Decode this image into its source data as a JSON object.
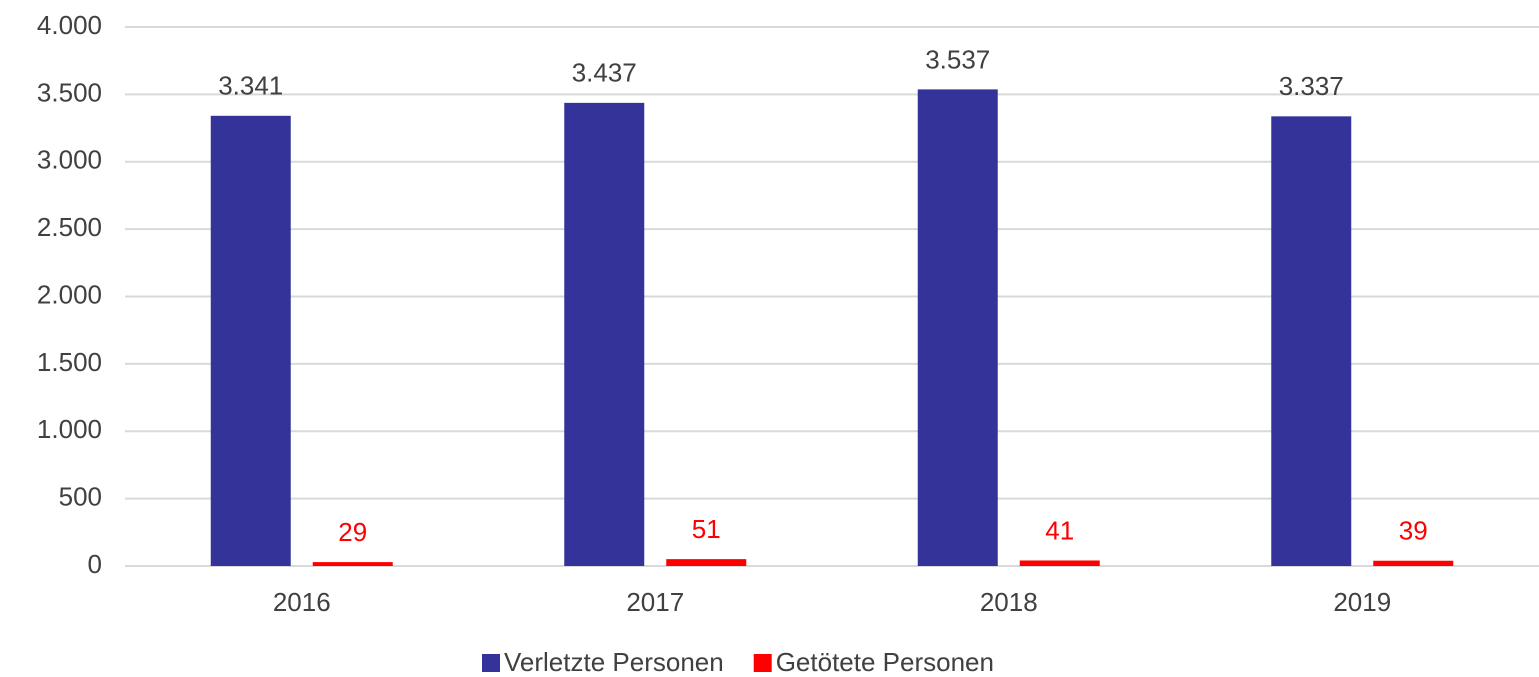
{
  "chart_data": {
    "type": "bar",
    "categories": [
      "2016",
      "2017",
      "2018",
      "2019"
    ],
    "series": [
      {
        "name": "Verletzte Personen",
        "color": "#333399",
        "values": [
          3341,
          3437,
          3537,
          3337
        ],
        "value_labels": [
          "3.341",
          "3.437",
          "3.537",
          "3.337"
        ],
        "label_color": "#404040"
      },
      {
        "name": "Getötete Personen",
        "color": "#ff0000",
        "values": [
          29,
          51,
          41,
          39
        ],
        "label_color": "#ff0000"
      }
    ],
    "ylim": [
      0,
      4000
    ],
    "yticks": [
      0,
      500,
      {
        "value": 1000,
        "label": "1.000"
      },
      {
        "value": 1500,
        "label": "1.500"
      },
      {
        "value": 2000,
        "label": "2.000"
      },
      {
        "value": 2500,
        "label": "2.500"
      },
      {
        "value": 3000,
        "label": "3.000"
      },
      {
        "value": 3500,
        "label": "3.500"
      },
      {
        "value": 4000,
        "label": "4.000"
      }
    ],
    "grid": true,
    "legend": "bottom"
  }
}
